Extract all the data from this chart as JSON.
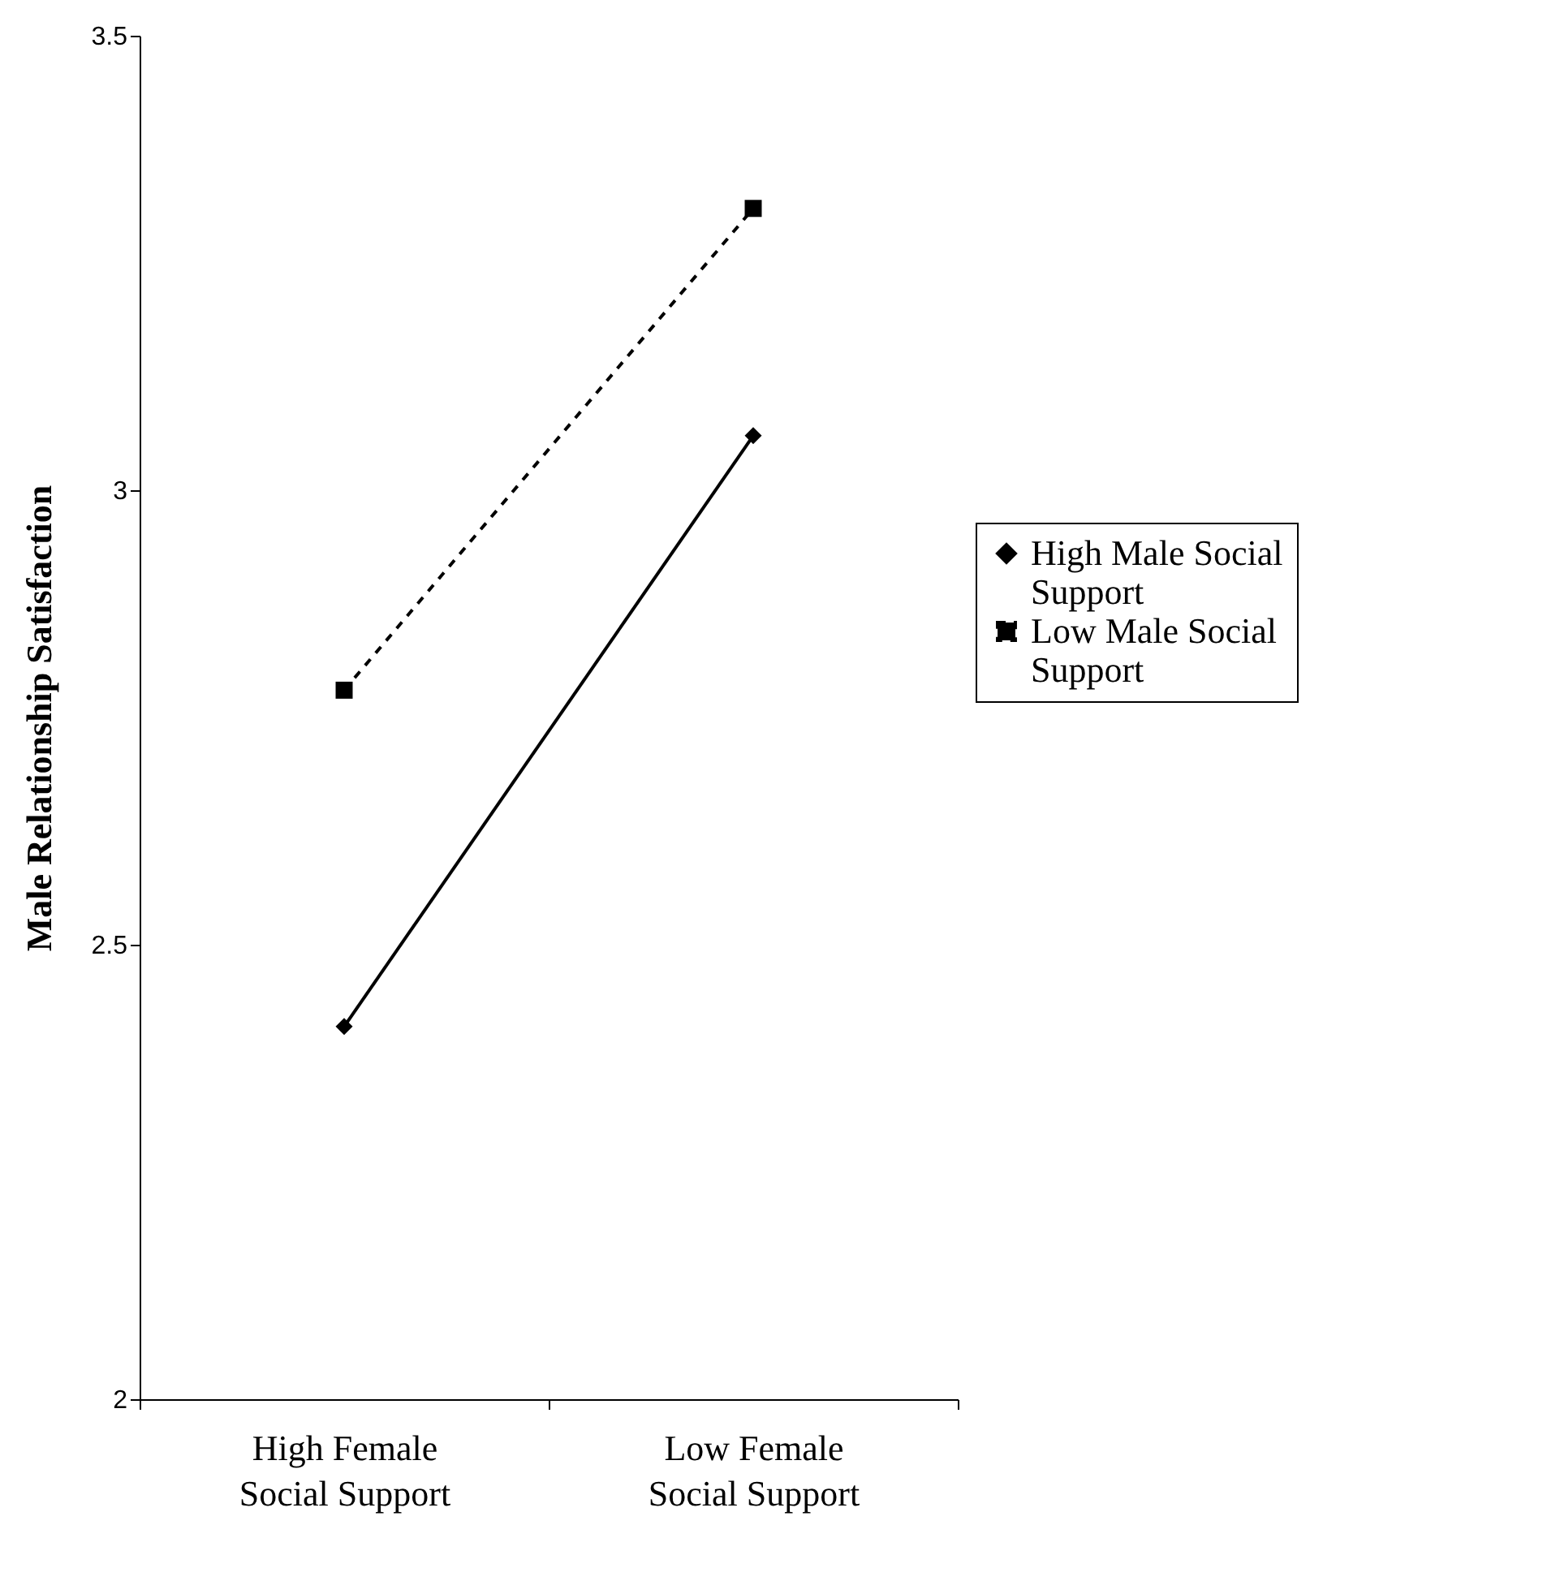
{
  "chart_data": {
    "type": "line",
    "categories": [
      "High Female Social Support",
      "Low Female Social Support"
    ],
    "series": [
      {
        "name": "High Male Social Support",
        "color": "#000000",
        "values": [
          2.41,
          3.06
        ],
        "marker": "diamond",
        "line_style": "solid"
      },
      {
        "name": "Low Male Social Support",
        "color": "#000000",
        "values": [
          2.78,
          3.31
        ],
        "marker": "square",
        "line_style": "dashed"
      }
    ],
    "ylabel": "Male Relationship Satisfaction",
    "ylim": [
      2,
      3.5
    ],
    "yticks": [
      2,
      2.5,
      3,
      3.5
    ],
    "legend": "right"
  }
}
